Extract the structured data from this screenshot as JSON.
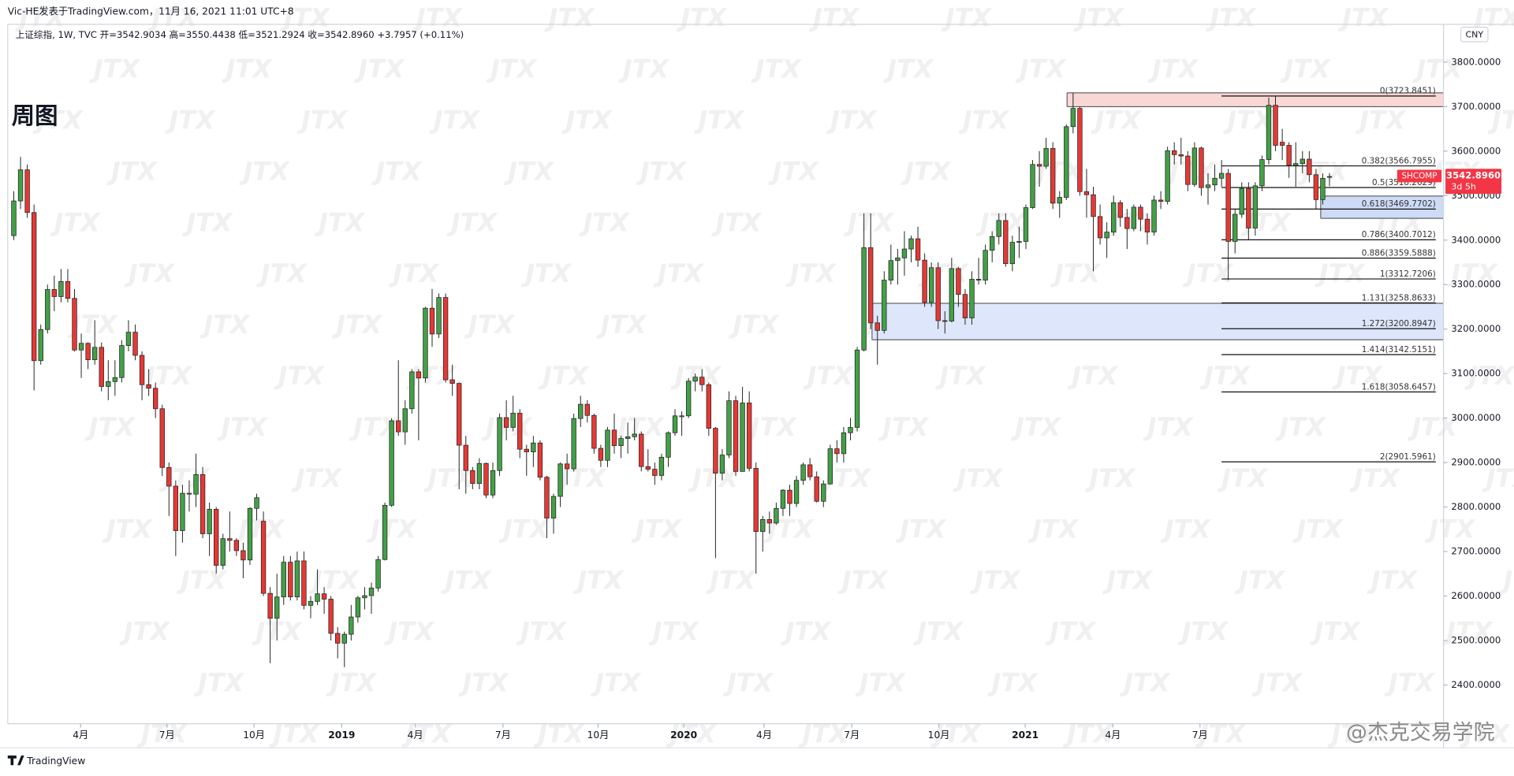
{
  "chart_data": {
    "type": "candlestick",
    "header": "Vic-HE发表于TradingView.com，11月 16, 2021 11:01 UTC+8",
    "legend": "上证综指, 1W, TVC  开=3542.9034  高=3550.4438  低=3521.2924  收=3542.8960  +3.7957 (+0.11%)",
    "title": "周图",
    "currency": "CNY",
    "symbol": "SHCOMP",
    "countdown": "3d 5h",
    "last_price": {
      "value": 3542.896,
      "label": "3542.8960"
    },
    "watermark": "JTX",
    "brand": "TradingView",
    "credit": "@杰克交易学院",
    "up_color": "#43a047",
    "down_color": "#e53935",
    "ylim": [
      2313,
      3885
    ],
    "xlim": [
      -0.9,
      211.9
    ],
    "yticks": [
      {
        "value": 2400,
        "label": "2400.0000"
      },
      {
        "value": 2500,
        "label": "2500.0000"
      },
      {
        "value": 2600,
        "label": "2600.0000"
      },
      {
        "value": 2700,
        "label": "2700.0000"
      },
      {
        "value": 2800,
        "label": "2800.0000"
      },
      {
        "value": 2900,
        "label": "2900.0000"
      },
      {
        "value": 3000,
        "label": "3000.0000"
      },
      {
        "value": 3100,
        "label": "3100.0000"
      },
      {
        "value": 3200,
        "label": "3200.0000"
      },
      {
        "value": 3300,
        "label": "3300.0000"
      },
      {
        "value": 3400,
        "label": "3400.0000"
      },
      {
        "value": 3500,
        "label": "3500.0000"
      },
      {
        "value": 3600,
        "label": "3600.0000"
      },
      {
        "value": 3700,
        "label": "3700.0000"
      },
      {
        "value": 3800,
        "label": "3800.0000"
      }
    ],
    "xticks": [
      {
        "value": 9.9,
        "label": "4月"
      },
      {
        "value": 22.7,
        "label": "7月"
      },
      {
        "value": 35.6,
        "label": "10月"
      },
      {
        "value": 48.6,
        "label": "2019"
      },
      {
        "value": 59.5,
        "label": "4月"
      },
      {
        "value": 72.5,
        "label": "7月"
      },
      {
        "value": 86.6,
        "label": "10月"
      },
      {
        "value": 99.3,
        "label": "2020"
      },
      {
        "value": 111.2,
        "label": "4月"
      },
      {
        "value": 124.2,
        "label": "7月"
      },
      {
        "value": 137.1,
        "label": "10月"
      },
      {
        "value": 149.9,
        "label": "2021"
      },
      {
        "value": 162.9,
        "label": "4月"
      },
      {
        "value": 175.8,
        "label": "7月"
      }
    ],
    "zones": [
      {
        "from": 156.1,
        "top": 3731,
        "bottom": 3700,
        "color": "#f8d7d4"
      },
      {
        "from": 127.2,
        "top": 3258,
        "bottom": 3176,
        "color": "#dde6fb"
      },
      {
        "from": 193.7,
        "top": 3499,
        "bottom": 3449,
        "color": "#cddbf7"
      }
    ],
    "fib_from": 179,
    "fib_levels": [
      {
        "value": 3723.8451,
        "label": "0(3723.8451)"
      },
      {
        "value": 3566.7955,
        "label": "0.382(3566.7955)"
      },
      {
        "value": 3518.2629,
        "label": "0.5(3518.2629)"
      },
      {
        "value": 3469.7702,
        "label": "0.618(3469.7702)"
      },
      {
        "value": 3400.7012,
        "label": "0.786(3400.7012)"
      },
      {
        "value": 3359.5888,
        "label": "0.886(3359.5888)"
      },
      {
        "value": 3312.7206,
        "label": "1(3312.7206)"
      },
      {
        "value": 3258.8633,
        "label": "1.131(3258.8633)"
      },
      {
        "value": 3200.8947,
        "label": "1.272(3200.8947)"
      },
      {
        "value": 3142.5151,
        "label": "1.414(3142.5151)"
      },
      {
        "value": 3058.6457,
        "label": "1.618(3058.6457)"
      },
      {
        "value": 2901.5961,
        "label": "2(2901.5961)"
      }
    ],
    "ohlc": [
      [
        3410,
        3510,
        3400,
        3488
      ],
      [
        3488,
        3587,
        3470,
        3558
      ],
      [
        3558,
        3570,
        3450,
        3462
      ],
      [
        3462,
        3480,
        3062,
        3129
      ],
      [
        3129,
        3210,
        3120,
        3199
      ],
      [
        3199,
        3300,
        3190,
        3289
      ],
      [
        3289,
        3320,
        3240,
        3273
      ],
      [
        3273,
        3335,
        3260,
        3307
      ],
      [
        3307,
        3335,
        3260,
        3269
      ],
      [
        3269,
        3290,
        3150,
        3153
      ],
      [
        3153,
        3190,
        3090,
        3168
      ],
      [
        3168,
        3170,
        3110,
        3131
      ],
      [
        3131,
        3220,
        3120,
        3159
      ],
      [
        3159,
        3170,
        3060,
        3071
      ],
      [
        3071,
        3130,
        3040,
        3082
      ],
      [
        3082,
        3130,
        3050,
        3091
      ],
      [
        3091,
        3175,
        3080,
        3163
      ],
      [
        3163,
        3220,
        3150,
        3193
      ],
      [
        3193,
        3210,
        3130,
        3141
      ],
      [
        3141,
        3150,
        3040,
        3075
      ],
      [
        3075,
        3110,
        3050,
        3067
      ],
      [
        3067,
        3080,
        3000,
        3021
      ],
      [
        3021,
        3030,
        2870,
        2889
      ],
      [
        2889,
        2900,
        2780,
        2847
      ],
      [
        2847,
        2860,
        2690,
        2747
      ],
      [
        2747,
        2850,
        2720,
        2831
      ],
      [
        2831,
        2860,
        2790,
        2829
      ],
      [
        2829,
        2920,
        2800,
        2873
      ],
      [
        2873,
        2890,
        2730,
        2740
      ],
      [
        2740,
        2810,
        2690,
        2795
      ],
      [
        2795,
        2800,
        2650,
        2669
      ],
      [
        2669,
        2740,
        2660,
        2729
      ],
      [
        2729,
        2790,
        2700,
        2725
      ],
      [
        2725,
        2730,
        2690,
        2702
      ],
      [
        2702,
        2720,
        2640,
        2681
      ],
      [
        2681,
        2800,
        2670,
        2797
      ],
      [
        2797,
        2830,
        2770,
        2821
      ],
      [
        2768,
        2790,
        2600,
        2606
      ],
      [
        2606,
        2620,
        2449,
        2550
      ],
      [
        2550,
        2650,
        2500,
        2598
      ],
      [
        2598,
        2690,
        2580,
        2676
      ],
      [
        2676,
        2690,
        2590,
        2598
      ],
      [
        2598,
        2700,
        2590,
        2679
      ],
      [
        2679,
        2700,
        2570,
        2579
      ],
      [
        2579,
        2600,
        2550,
        2588
      ],
      [
        2588,
        2660,
        2580,
        2605
      ],
      [
        2605,
        2620,
        2560,
        2593
      ],
      [
        2593,
        2600,
        2500,
        2516
      ],
      [
        2516,
        2530,
        2460,
        2494
      ],
      [
        2494,
        2520,
        2440,
        2514
      ],
      [
        2514,
        2580,
        2500,
        2553
      ],
      [
        2553,
        2600,
        2540,
        2596
      ],
      [
        2596,
        2620,
        2570,
        2601
      ],
      [
        2601,
        2630,
        2560,
        2618
      ],
      [
        2618,
        2690,
        2610,
        2682
      ],
      [
        2682,
        2810,
        2680,
        2804
      ],
      [
        2804,
        3000,
        2800,
        2994
      ],
      [
        2994,
        3130,
        2960,
        2969
      ],
      [
        2969,
        3040,
        2940,
        3021
      ],
      [
        3021,
        3110,
        3010,
        3104
      ],
      [
        3104,
        3110,
        2950,
        3090
      ],
      [
        3090,
        3250,
        3080,
        3247
      ],
      [
        3247,
        3290,
        3160,
        3189
      ],
      [
        3189,
        3280,
        3180,
        3271
      ],
      [
        3271,
        3280,
        3080,
        3086
      ],
      [
        3086,
        3120,
        3050,
        3078
      ],
      [
        3078,
        3080,
        2840,
        2939
      ],
      [
        2939,
        2960,
        2830,
        2882
      ],
      [
        2882,
        2890,
        2840,
        2853
      ],
      [
        2853,
        2910,
        2840,
        2898
      ],
      [
        2898,
        2900,
        2820,
        2827
      ],
      [
        2827,
        2900,
        2820,
        2882
      ],
      [
        2882,
        3010,
        2870,
        3001
      ],
      [
        3001,
        3040,
        2950,
        2979
      ],
      [
        2979,
        3050,
        2970,
        3011
      ],
      [
        3011,
        3020,
        2910,
        2930
      ],
      [
        2930,
        2940,
        2870,
        2924
      ],
      [
        2924,
        2960,
        2890,
        2944
      ],
      [
        2944,
        2950,
        2860,
        2867
      ],
      [
        2867,
        2870,
        2730,
        2775
      ],
      [
        2775,
        2830,
        2740,
        2824
      ],
      [
        2824,
        2900,
        2800,
        2897
      ],
      [
        2897,
        2920,
        2850,
        2886
      ],
      [
        2886,
        3010,
        2880,
        2999
      ],
      [
        2999,
        3050,
        2980,
        3031
      ],
      [
        3031,
        3040,
        2990,
        3006
      ],
      [
        3006,
        3010,
        2920,
        2932
      ],
      [
        2932,
        2940,
        2890,
        2905
      ],
      [
        2905,
        2980,
        2890,
        2973
      ],
      [
        2973,
        3010,
        2920,
        2938
      ],
      [
        2938,
        2960,
        2910,
        2954
      ],
      [
        2954,
        2990,
        2920,
        2958
      ],
      [
        2958,
        3000,
        2950,
        2964
      ],
      [
        2964,
        2970,
        2880,
        2891
      ],
      [
        2891,
        2930,
        2880,
        2885
      ],
      [
        2885,
        2900,
        2850,
        2871
      ],
      [
        2871,
        2920,
        2860,
        2912
      ],
      [
        2912,
        2970,
        2890,
        2967
      ],
      [
        2967,
        3020,
        2960,
        3005
      ],
      [
        3003,
        3015,
        2960,
        3005
      ],
      [
        3005,
        3090,
        3000,
        3083
      ],
      [
        3083,
        3100,
        3060,
        3092
      ],
      [
        3092,
        3110,
        3060,
        3075
      ],
      [
        3075,
        3080,
        2960,
        2977
      ],
      [
        2977,
        2980,
        2685,
        2876
      ],
      [
        2876,
        2930,
        2860,
        2917
      ],
      [
        2917,
        3060,
        2910,
        3039
      ],
      [
        3039,
        3050,
        2870,
        2880
      ],
      [
        2880,
        3070,
        2880,
        3034
      ],
      [
        3034,
        3060,
        2880,
        2887
      ],
      [
        2887,
        2900,
        2650,
        2745
      ],
      [
        2745,
        2780,
        2700,
        2772
      ],
      [
        2772,
        2790,
        2740,
        2764
      ],
      [
        2764,
        2810,
        2760,
        2797
      ],
      [
        2797,
        2840,
        2780,
        2838
      ],
      [
        2838,
        2850,
        2780,
        2808
      ],
      [
        2808,
        2870,
        2800,
        2860
      ],
      [
        2860,
        2900,
        2850,
        2895
      ],
      [
        2895,
        2910,
        2860,
        2868
      ],
      [
        2868,
        2880,
        2810,
        2813
      ],
      [
        2813,
        2860,
        2800,
        2852
      ],
      [
        2852,
        2940,
        2850,
        2931
      ],
      [
        2931,
        2950,
        2900,
        2920
      ],
      [
        2920,
        2980,
        2900,
        2967
      ],
      [
        2967,
        3000,
        2950,
        2979
      ],
      [
        2979,
        3160,
        2970,
        3153
      ],
      [
        3153,
        3460,
        3150,
        3383
      ],
      [
        3383,
        3460,
        3200,
        3214
      ],
      [
        3214,
        3230,
        3120,
        3197
      ],
      [
        3197,
        3330,
        3190,
        3310
      ],
      [
        3310,
        3390,
        3300,
        3354
      ],
      [
        3354,
        3380,
        3300,
        3360
      ],
      [
        3360,
        3420,
        3320,
        3380
      ],
      [
        3380,
        3410,
        3350,
        3403
      ],
      [
        3403,
        3430,
        3340,
        3355
      ],
      [
        3355,
        3370,
        3250,
        3260
      ],
      [
        3260,
        3350,
        3250,
        3338
      ],
      [
        3338,
        3350,
        3200,
        3219
      ],
      [
        3219,
        3240,
        3190,
        3218
      ],
      [
        3218,
        3360,
        3215,
        3336
      ],
      [
        3336,
        3340,
        3250,
        3278
      ],
      [
        3278,
        3290,
        3210,
        3225
      ],
      [
        3225,
        3330,
        3210,
        3312
      ],
      [
        3312,
        3360,
        3300,
        3310
      ],
      [
        3310,
        3390,
        3300,
        3377
      ],
      [
        3377,
        3420,
        3350,
        3408
      ],
      [
        3408,
        3460,
        3390,
        3444
      ],
      [
        3444,
        3460,
        3340,
        3347
      ],
      [
        3347,
        3410,
        3330,
        3395
      ],
      [
        3395,
        3430,
        3360,
        3397
      ],
      [
        3397,
        3480,
        3380,
        3473
      ],
      [
        3473,
        3580,
        3470,
        3570
      ],
      [
        3570,
        3600,
        3520,
        3566
      ],
      [
        3566,
        3630,
        3560,
        3606
      ],
      [
        3606,
        3620,
        3470,
        3483
      ],
      [
        3483,
        3510,
        3450,
        3496
      ],
      [
        3496,
        3660,
        3490,
        3655
      ],
      [
        3655,
        3731,
        3640,
        3696
      ],
      [
        3696,
        3700,
        3500,
        3509
      ],
      [
        3509,
        3560,
        3450,
        3502
      ],
      [
        3502,
        3520,
        3330,
        3453
      ],
      [
        3453,
        3480,
        3390,
        3405
      ],
      [
        3405,
        3440,
        3360,
        3418
      ],
      [
        3418,
        3500,
        3410,
        3484
      ],
      [
        3484,
        3490,
        3430,
        3451
      ],
      [
        3451,
        3470,
        3380,
        3426
      ],
      [
        3426,
        3480,
        3420,
        3474
      ],
      [
        3474,
        3480,
        3420,
        3447
      ],
      [
        3447,
        3460,
        3390,
        3418
      ],
      [
        3418,
        3500,
        3410,
        3490
      ],
      [
        3490,
        3510,
        3470,
        3487
      ],
      [
        3487,
        3610,
        3480,
        3601
      ],
      [
        3601,
        3620,
        3570,
        3592
      ],
      [
        3592,
        3630,
        3570,
        3589
      ],
      [
        3589,
        3600,
        3510,
        3525
      ],
      [
        3525,
        3620,
        3520,
        3607
      ],
      [
        3607,
        3610,
        3500,
        3518
      ],
      [
        3518,
        3550,
        3480,
        3524
      ],
      [
        3524,
        3570,
        3510,
        3539
      ],
      [
        3539,
        3580,
        3520,
        3550
      ],
      [
        3550,
        3560,
        3310,
        3397
      ],
      [
        3397,
        3470,
        3370,
        3458
      ],
      [
        3458,
        3530,
        3450,
        3516
      ],
      [
        3516,
        3530,
        3400,
        3427
      ],
      [
        3427,
        3530,
        3410,
        3522
      ],
      [
        3522,
        3590,
        3510,
        3581
      ],
      [
        3581,
        3720,
        3570,
        3703
      ],
      [
        3703,
        3724,
        3600,
        3613
      ],
      [
        3620,
        3650,
        3580,
        3613
      ],
      [
        3613,
        3620,
        3540,
        3568
      ],
      [
        3568,
        3620,
        3520,
        3572
      ],
      [
        3572,
        3600,
        3550,
        3582
      ],
      [
        3582,
        3600,
        3530,
        3547
      ],
      [
        3547,
        3560,
        3470,
        3491
      ],
      [
        3491,
        3550,
        3480,
        3539
      ],
      [
        3542.9034,
        3550.4438,
        3521.2924,
        3542.896
      ]
    ]
  }
}
